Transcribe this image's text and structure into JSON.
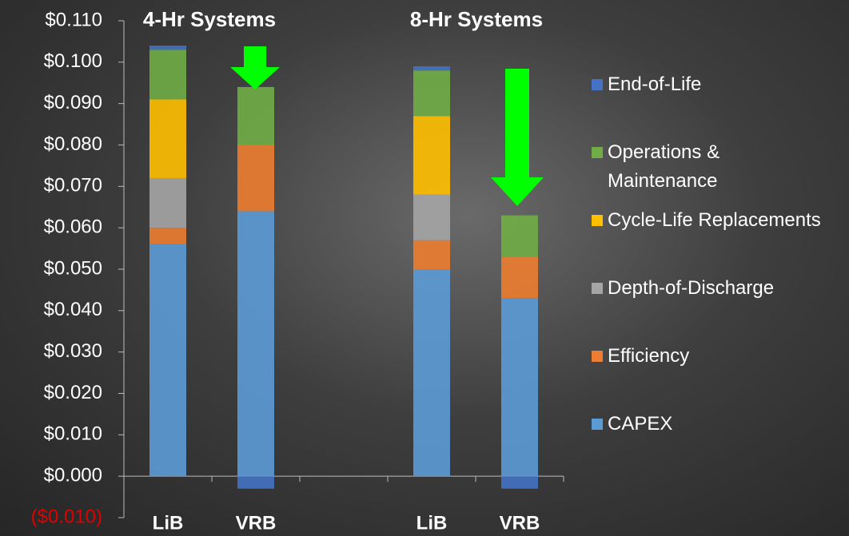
{
  "chart_data": {
    "type": "stacked_bar",
    "annotations": [
      "4-Hr Systems",
      "8-Hr Systems"
    ],
    "categories": [
      "LiB",
      "VRB",
      null,
      "LiB",
      "VRB"
    ],
    "series": [
      {
        "name": "CAPEX",
        "color": "#5b9bd5",
        "values": [
          0.056,
          0.064,
          null,
          0.05,
          0.043
        ]
      },
      {
        "name": "Efficiency",
        "color": "#ed7d31",
        "values": [
          0.004,
          0.016,
          null,
          0.007,
          0.01
        ]
      },
      {
        "name": "Depth-of-Discharge",
        "color": "#a5a5a5",
        "values": [
          0.012,
          0,
          null,
          0.011,
          0
        ]
      },
      {
        "name": "Cycle-Life Replacements",
        "color": "#ffc000",
        "values": [
          0.019,
          0,
          null,
          0.019,
          0
        ]
      },
      {
        "name": "Operations & Maintenance",
        "color": "#70ad47",
        "values": [
          0.012,
          0.014,
          null,
          0.011,
          0.01
        ]
      },
      {
        "name": "End-of-Life",
        "color": "#4472c4",
        "values": [
          0.001,
          -0.003,
          null,
          0.001,
          -0.003
        ]
      }
    ],
    "ylim": [
      -0.01,
      0.11
    ],
    "yticks": [
      {
        "value": -0.01,
        "label": "($0.010)"
      },
      {
        "value": 0,
        "label": "$0.000"
      },
      {
        "value": 0.01,
        "label": "$0.010"
      },
      {
        "value": 0.02,
        "label": "$0.020"
      },
      {
        "value": 0.03,
        "label": "$0.030"
      },
      {
        "value": 0.04,
        "label": "$0.040"
      },
      {
        "value": 0.05,
        "label": "$0.050"
      },
      {
        "value": 0.06,
        "label": "$0.060"
      },
      {
        "value": 0.07,
        "label": "$0.070"
      },
      {
        "value": 0.08,
        "label": "$0.080"
      },
      {
        "value": 0.09,
        "label": "$0.090"
      },
      {
        "value": 0.1,
        "label": "$0.100"
      },
      {
        "value": 0.11,
        "label": "$0.110"
      }
    ],
    "legend": "right"
  }
}
